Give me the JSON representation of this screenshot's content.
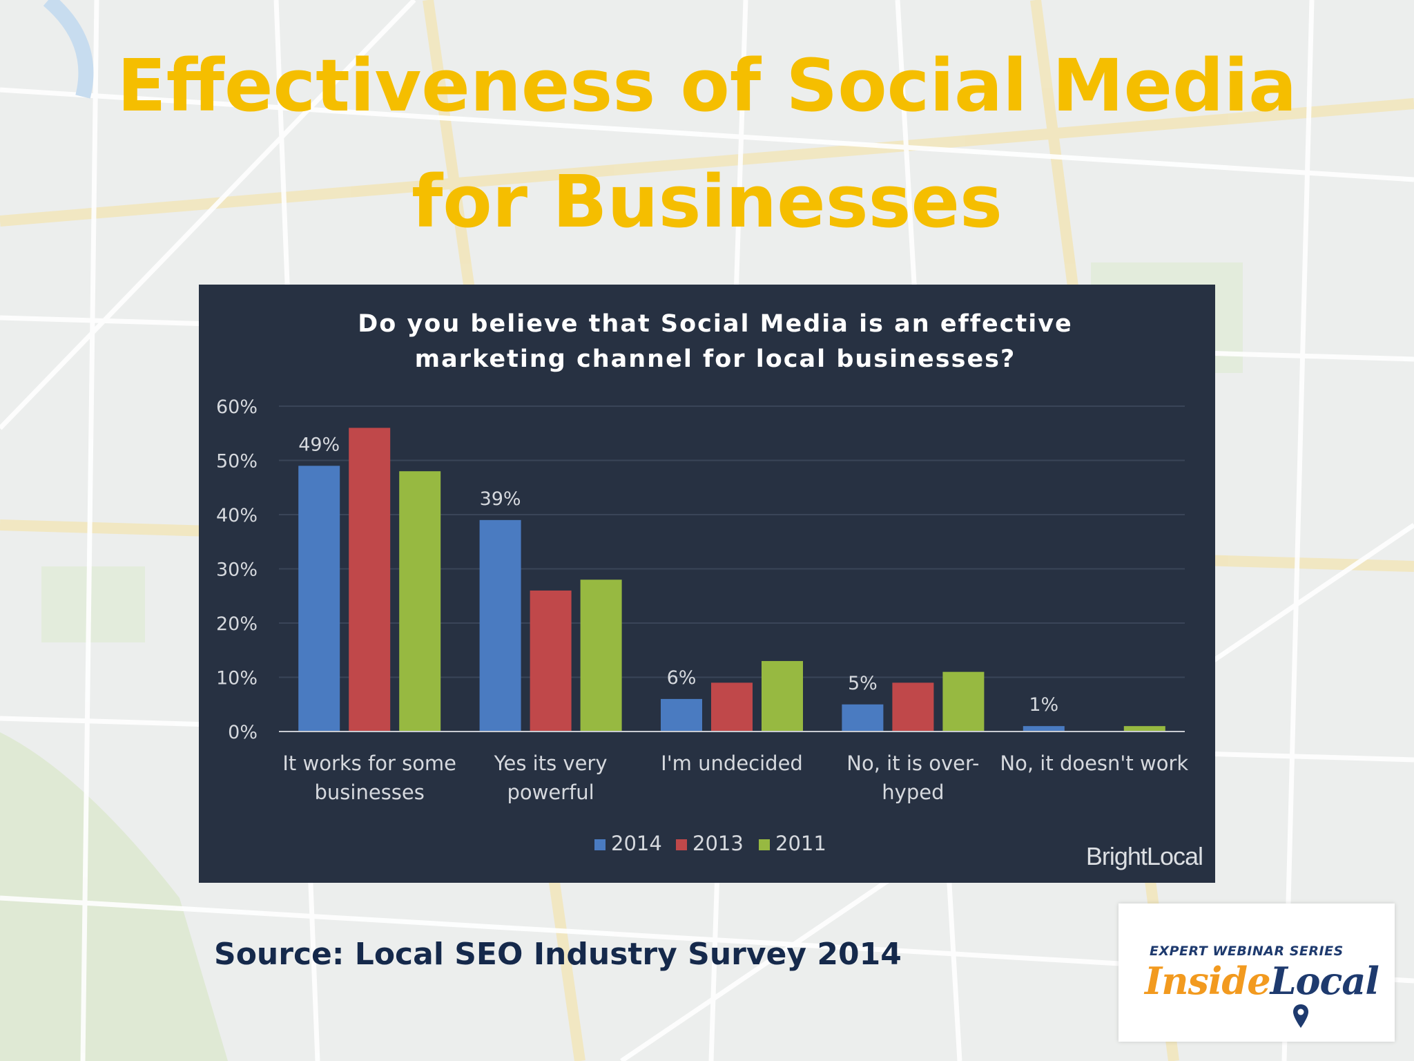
{
  "slide": {
    "title_line1": "Effectiveness of Social Media",
    "title_line2": "for Businesses",
    "source": "Source: Local SEO Industry Survey 2014"
  },
  "logo": {
    "subtitle": "EXPERT WEBINAR SERIES",
    "part1": "Inside",
    "part2": "Local"
  },
  "chart_data": {
    "type": "bar",
    "title_lines": [
      "Do you believe that Social Media is an effective",
      "marketing channel for local businesses?"
    ],
    "categories": [
      [
        "It works for some",
        "businesses"
      ],
      [
        "Yes its very",
        "powerful"
      ],
      [
        "I'm undecided"
      ],
      [
        "No, it is over-",
        "hyped"
      ],
      [
        "No, it doesn't work"
      ]
    ],
    "series": [
      {
        "name": "2014",
        "color": "#4a7bc1",
        "values": [
          49,
          39,
          6,
          5,
          1
        ],
        "labels": [
          "49%",
          "39%",
          "6%",
          "5%",
          "1%"
        ]
      },
      {
        "name": "2013",
        "color": "#c0484a",
        "values": [
          56,
          26,
          9,
          9,
          0
        ]
      },
      {
        "name": "2011",
        "color": "#97b941",
        "values": [
          48,
          28,
          13,
          11,
          1
        ]
      }
    ],
    "ylim": [
      0,
      60
    ],
    "yticks": [
      "0%",
      "10%",
      "20%",
      "30%",
      "40%",
      "50%",
      "60%"
    ],
    "grid": true,
    "legend_position": "bottom-center",
    "watermark": "BrightLocal"
  }
}
